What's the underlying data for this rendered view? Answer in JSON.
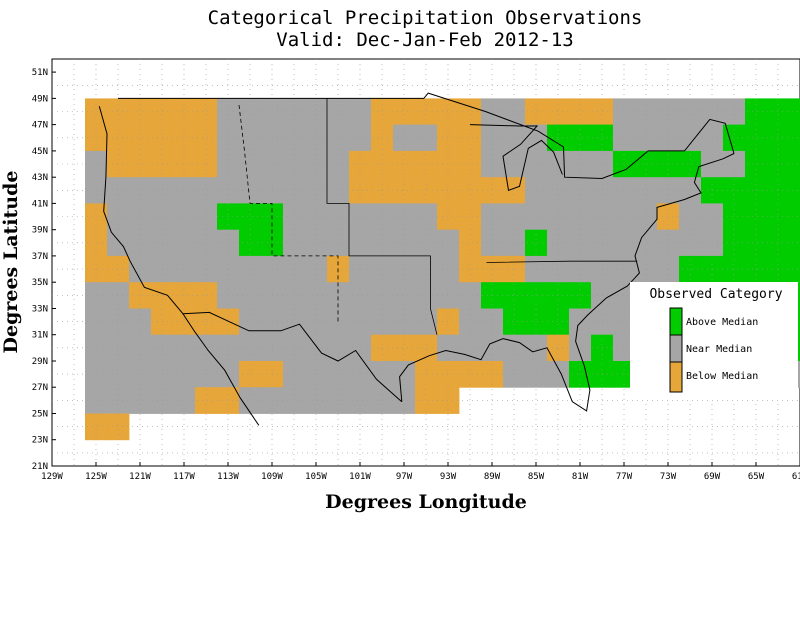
{
  "title_line1": "Categorical Precipitation Observations",
  "title_line2": "Valid: Dec-Jan-Feb 2012-13",
  "x_axis_title": "Degrees Longitude",
  "y_axis_title": "Degrees Latitude",
  "x_ticks": [
    "129W",
    "125W",
    "121W",
    "117W",
    "113W",
    "109W",
    "105W",
    "101W",
    "97W",
    "93W",
    "89W",
    "85W",
    "81W",
    "77W",
    "73W",
    "69W",
    "65W",
    "61W"
  ],
  "y_ticks": [
    "21N",
    "23N",
    "25N",
    "27N",
    "29N",
    "31N",
    "33N",
    "35N",
    "37N",
    "39N",
    "41N",
    "43N",
    "45N",
    "47N",
    "49N",
    "51N"
  ],
  "legend": {
    "title": "Observed Category",
    "items": [
      {
        "key": "A",
        "label": "Above Median",
        "color": "#00cc00"
      },
      {
        "key": "N",
        "label": "Near Median",
        "color": "#a6a6a6"
      },
      {
        "key": "B",
        "label": "Below Median",
        "color": "#e6a63a"
      }
    ]
  },
  "chart_data": {
    "type": "heatmap",
    "title": "Categorical Precipitation Observations",
    "subtitle": "Valid: Dec-Jan-Feb 2012-13",
    "xlabel": "Degrees Longitude",
    "ylabel": "Degrees Latitude",
    "xlim": [
      -129,
      -61
    ],
    "ylim": [
      21,
      52
    ],
    "cell_size_deg": 2,
    "categories": {
      "A": "Above Median",
      "N": "Near Median",
      "B": "Below Median"
    },
    "rows_lon_start": -126,
    "rows": [
      {
        "lat_top": 49,
        "cells": "BBBBBBNNNNNNNBBBBBNNBBBBNNNNNNAAAAANAAB"
      },
      {
        "lat_top": 47,
        "cells": "BBBBBBNNNNNNNBNNBBNNNAAANNNNNAAAANAAAAA"
      },
      {
        "lat_top": 45,
        "cells": "NBBBBBNNNNNNBBBBBBNNNNNNAAAANNAAAAAAANNANNNNNNNB"
      },
      {
        "lat_top": 43,
        "cells": "NNNNNNNNNNNNBBBBBBBBNNNNNNNNAAAAAAAAAAANNAAAAAAANNNNNB"
      },
      {
        "lat_top": 41,
        "cells": "BNNNNNAAANNNNNNNBBNNNNNNNNBNNAAAAAAAAAAAAAAAAANNNNAAA"
      },
      {
        "lat_top": 39,
        "cells": "BNNNNNNAANNNNNNNNBNNANNNNNNNNAAAAAANAAANNAAAAAAAANA"
      },
      {
        "lat_top": 37,
        "cells": "BBNNNNNNNNNBNNNNNBBBNNNNNNNAAAAAAAAAAAANNNNNNN"
      },
      {
        "lat_top": 35,
        "cells": "NNBBBBNNNNNNNNNNNNAAAAANNNNNAAAAAAAAAAAAAAAAAAAAAA"
      },
      {
        "lat_top": 33,
        "cells": "NNNBBBBNNNNNNNNNBNNAAANNNNNNNAAAAAAAAAAAAAAANNNN"
      },
      {
        "lat_top": 31,
        "cells": "NNNNNNNNNNNNNBBBNNNNNBNANNNAAAAAAAAAAAAAAAAANN"
      },
      {
        "lat_top": 29,
        "cells": "NNNNNNNBBNNNNNNBBBBNNNAAAAAAAAAANAAAABB"
      },
      {
        "lat_top": 27,
        "cells": "NNNNNBBNNNNNNNNBB"
      },
      {
        "lat_top": 25,
        "cells": "BB"
      }
    ]
  }
}
